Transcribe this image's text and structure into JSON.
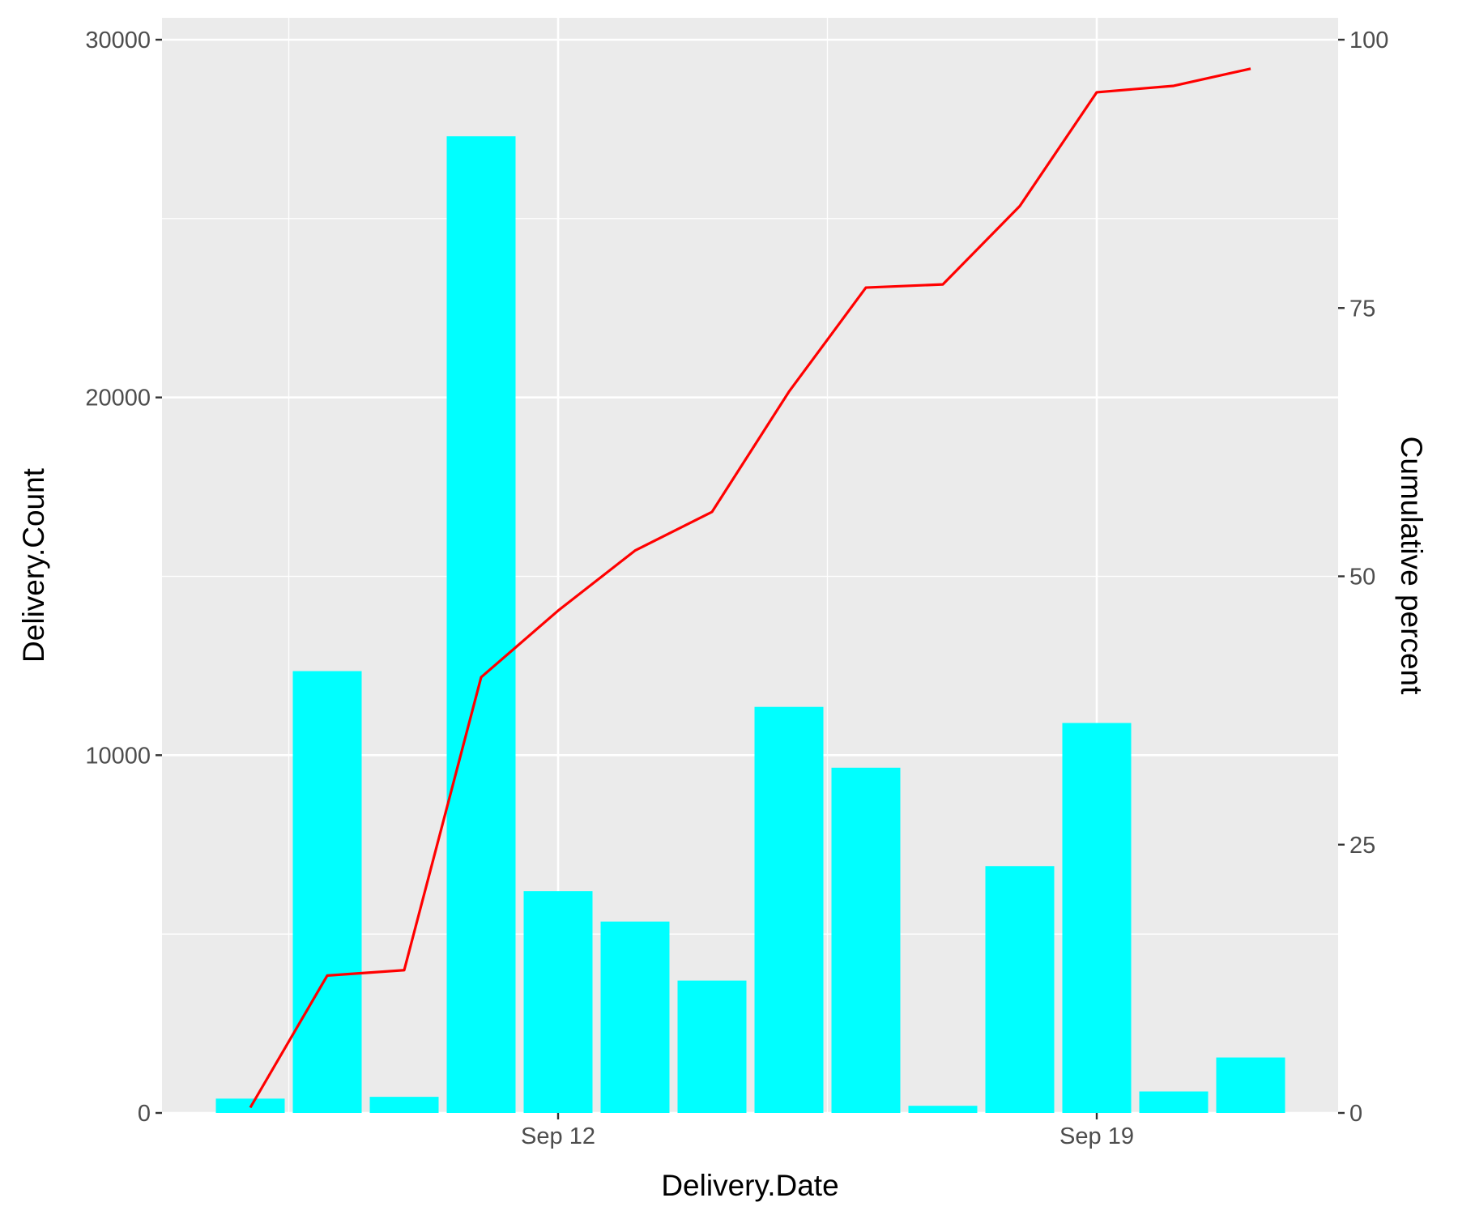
{
  "chart_data": {
    "type": "bar",
    "x_dates": [
      "2024-09-08",
      "2024-09-09",
      "2024-09-10",
      "2024-09-11",
      "2024-09-12",
      "2024-09-13",
      "2024-09-14",
      "2024-09-15",
      "2024-09-16",
      "2024-09-17",
      "2024-09-18",
      "2024-09-19",
      "2024-09-20",
      "2024-09-21"
    ],
    "x_ticks": [
      {
        "date": "2024-09-12",
        "label": "Sep 12"
      },
      {
        "date": "2024-09-19",
        "label": "Sep 19"
      }
    ],
    "series": [
      {
        "values": [
          400,
          12350,
          450,
          27300,
          6200,
          5350,
          3700,
          11350,
          9650,
          200,
          6900,
          10900,
          600,
          1550
        ],
        "color": "#00FFFF",
        "axis": "left"
      },
      {
        "type": "line",
        "values": [
          0.5,
          12.8,
          13.3,
          40.6,
          46.8,
          52.4,
          56.0,
          67.2,
          76.9,
          77.2,
          84.5,
          95.1,
          95.7,
          97.3
        ],
        "color": "#FF0000",
        "axis": "right"
      }
    ],
    "xlabel": "Delivery.Date",
    "ylabel": "Delivery.Count",
    "ylabel_right": "Cumulative percent",
    "ylim": [
      0,
      30000
    ],
    "ylim_right": [
      0,
      100
    ],
    "yticks": [
      "0",
      "10000",
      "20000",
      "30000"
    ],
    "yticks_right": [
      "0",
      "25",
      "50",
      "75",
      "100"
    ],
    "grid": true
  }
}
